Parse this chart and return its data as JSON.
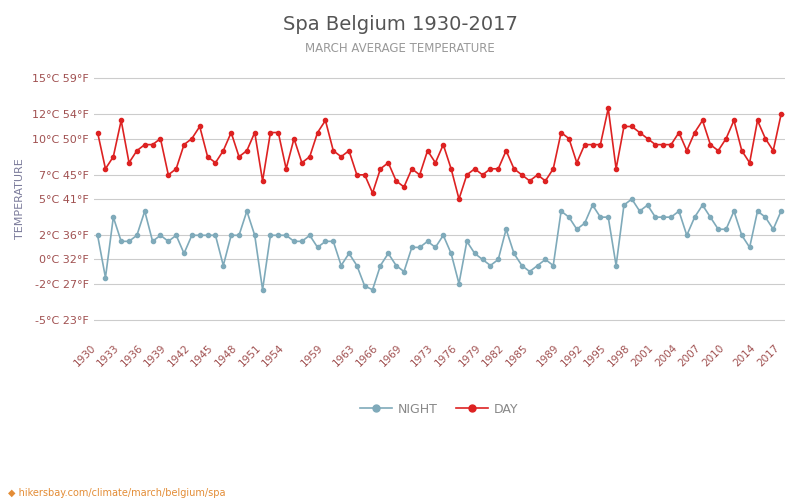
{
  "title": "Spa Belgium 1930-2017",
  "subtitle": "MARCH AVERAGE TEMPERATURE",
  "ylabel": "TEMPERATURE",
  "background_color": "#ffffff",
  "plot_bg_color": "#ffffff",
  "grid_color": "#cccccc",
  "tick_color": "#a05050",
  "ylabel_color": "#7a7a9a",
  "ytick_labels": [
    "15°C 59°F",
    "12°C 54°F",
    "10°C 50°F",
    "7°C 45°F",
    "5°C 41°F",
    "2°C 36°F",
    "0°C 32°F",
    "-2°C 27°F",
    "-5°C 23°F"
  ],
  "ytick_vals": [
    15,
    12,
    10,
    7,
    5,
    2,
    0,
    -2,
    -5
  ],
  "ylim": [
    -6.5,
    16.5
  ],
  "xlim": [
    1929.5,
    2017.5
  ],
  "xtick_years": [
    1930,
    1933,
    1936,
    1939,
    1942,
    1945,
    1948,
    1951,
    1954,
    1959,
    1963,
    1966,
    1969,
    1973,
    1976,
    1979,
    1982,
    1985,
    1989,
    1992,
    1995,
    1998,
    2001,
    2004,
    2007,
    2010,
    2014,
    2017
  ],
  "day_color": "#dd2222",
  "night_color": "#7faaba",
  "watermark": "hikersbay.com/climate/march/belgium/spa",
  "day_data": {
    "1930": 10.5,
    "1931": 7.5,
    "1932": 8.5,
    "1933": 11.5,
    "1934": 8.0,
    "1935": 9.0,
    "1936": 9.5,
    "1937": 9.5,
    "1938": 10.0,
    "1939": 7.0,
    "1940": 7.5,
    "1941": 9.5,
    "1942": 10.0,
    "1943": 11.0,
    "1944": 8.5,
    "1945": 8.0,
    "1946": 9.0,
    "1947": 10.5,
    "1948": 8.5,
    "1949": 9.0,
    "1950": 10.5,
    "1951": 6.5,
    "1952": 10.5,
    "1953": 10.5,
    "1954": 7.5,
    "1955": 10.0,
    "1956": 8.0,
    "1957": 8.5,
    "1958": 10.5,
    "1959": 11.5,
    "1960": 9.0,
    "1961": 8.5,
    "1962": 9.0,
    "1963": 7.0,
    "1964": 7.0,
    "1965": 5.5,
    "1966": 7.5,
    "1967": 8.0,
    "1968": 6.5,
    "1969": 6.0,
    "1970": 7.5,
    "1971": 7.0,
    "1972": 9.0,
    "1973": 8.0,
    "1974": 9.5,
    "1975": 7.5,
    "1976": 5.0,
    "1977": 7.0,
    "1978": 7.5,
    "1979": 7.0,
    "1980": 7.5,
    "1981": 7.5,
    "1982": 9.0,
    "1983": 7.5,
    "1984": 7.0,
    "1985": 6.5,
    "1986": 7.0,
    "1987": 6.5,
    "1988": 7.5,
    "1989": 10.5,
    "1990": 10.0,
    "1991": 8.0,
    "1992": 9.5,
    "1993": 9.5,
    "1994": 9.5,
    "1995": 12.5,
    "1996": 7.5,
    "1997": 11.0,
    "1998": 11.0,
    "1999": 10.5,
    "2000": 10.0,
    "2001": 9.5,
    "2002": 9.5,
    "2003": 9.5,
    "2004": 10.5,
    "2005": 9.0,
    "2006": 10.5,
    "2007": 11.5,
    "2008": 9.5,
    "2009": 9.0,
    "2010": 10.0,
    "2011": 11.5,
    "2012": 9.0,
    "2013": 8.0,
    "2014": 11.5,
    "2015": 10.0,
    "2016": 9.0,
    "2017": 12.0
  },
  "night_data": {
    "1930": 2.0,
    "1931": -1.5,
    "1932": 3.5,
    "1933": 1.5,
    "1934": 1.5,
    "1935": 2.0,
    "1936": 4.0,
    "1937": 1.5,
    "1938": 2.0,
    "1939": 1.5,
    "1940": 2.0,
    "1941": 0.5,
    "1942": 2.0,
    "1943": 2.0,
    "1944": 2.0,
    "1945": 2.0,
    "1946": -0.5,
    "1947": 2.0,
    "1948": 2.0,
    "1949": 4.0,
    "1950": 2.0,
    "1951": -2.5,
    "1952": 2.0,
    "1953": 2.0,
    "1954": 2.0,
    "1955": 1.5,
    "1956": 1.5,
    "1957": 2.0,
    "1958": 1.0,
    "1959": 1.5,
    "1960": 1.5,
    "1961": -0.5,
    "1962": 0.5,
    "1963": -0.5,
    "1964": -2.2,
    "1965": -2.5,
    "1966": -0.5,
    "1967": 0.5,
    "1968": -0.5,
    "1969": -1.0,
    "1970": 1.0,
    "1971": 1.0,
    "1972": 1.5,
    "1973": 1.0,
    "1974": 2.0,
    "1975": 0.5,
    "1976": -2.0,
    "1977": 1.5,
    "1978": 0.5,
    "1979": 0.0,
    "1980": -0.5,
    "1981": 0.0,
    "1982": 2.5,
    "1983": 0.5,
    "1984": -0.5,
    "1985": -1.0,
    "1986": -0.5,
    "1987": 0.0,
    "1988": -0.5,
    "1989": 4.0,
    "1990": 3.5,
    "1991": 2.5,
    "1992": 3.0,
    "1993": 4.5,
    "1994": 3.5,
    "1995": 3.5,
    "1996": -0.5,
    "1997": 4.5,
    "1998": 5.0,
    "1999": 4.0,
    "2000": 4.5,
    "2001": 3.5,
    "2002": 3.5,
    "2003": 3.5,
    "2004": 4.0,
    "2005": 2.0,
    "2006": 3.5,
    "2007": 4.5,
    "2008": 3.5,
    "2009": 2.5,
    "2010": 2.5,
    "2011": 4.0,
    "2012": 2.0,
    "2013": 1.0,
    "2014": 4.0,
    "2015": 3.5,
    "2016": 2.5,
    "2017": 4.0
  }
}
